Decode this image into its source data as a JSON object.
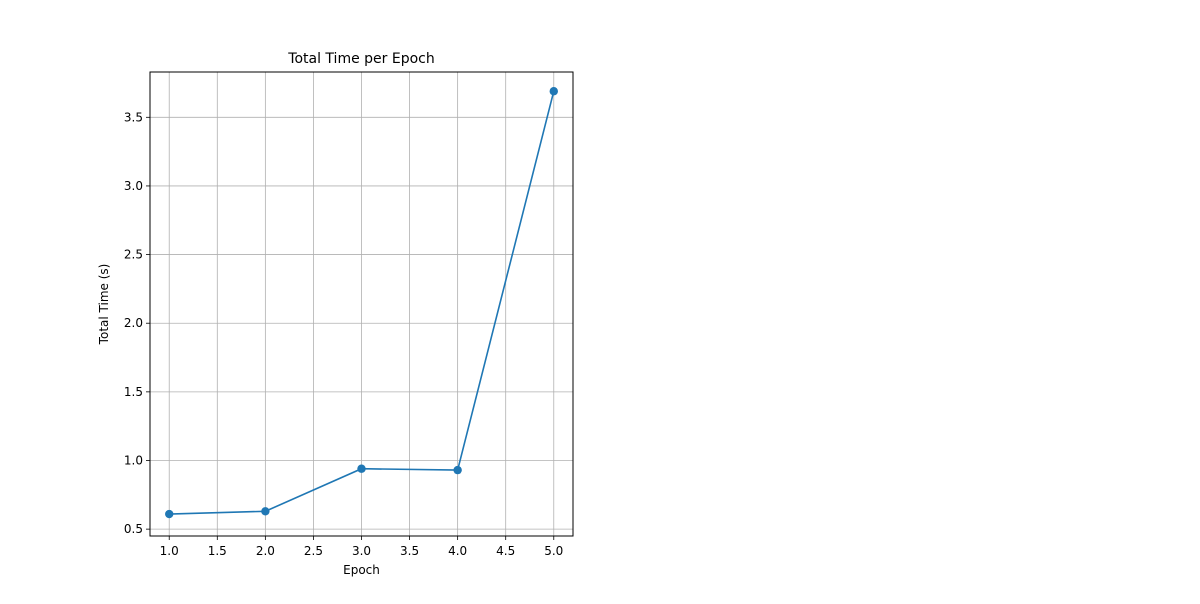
{
  "chart_data": {
    "type": "line",
    "title": "Total Time per Epoch",
    "xlabel": "Epoch",
    "ylabel": "Total Time (s)",
    "xlim": [
      0.8,
      5.2
    ],
    "ylim": [
      0.45,
      3.83
    ],
    "x_ticks": [
      1.0,
      1.5,
      2.0,
      2.5,
      3.0,
      3.5,
      4.0,
      4.5,
      5.0
    ],
    "x_tick_labels": [
      "1.0",
      "1.5",
      "2.0",
      "2.5",
      "3.0",
      "3.5",
      "4.0",
      "4.5",
      "5.0"
    ],
    "y_ticks": [
      0.5,
      1.0,
      1.5,
      2.0,
      2.5,
      3.0,
      3.5
    ],
    "y_tick_labels": [
      "0.5",
      "1.0",
      "1.5",
      "2.0",
      "2.5",
      "3.0",
      "3.5"
    ],
    "grid": true,
    "legend": "none",
    "series": [
      {
        "color": "#1f77b4",
        "marker": "circle",
        "x": [
          1,
          2,
          3,
          4,
          5
        ],
        "y": [
          0.61,
          0.63,
          0.94,
          0.93,
          3.69
        ]
      }
    ]
  }
}
